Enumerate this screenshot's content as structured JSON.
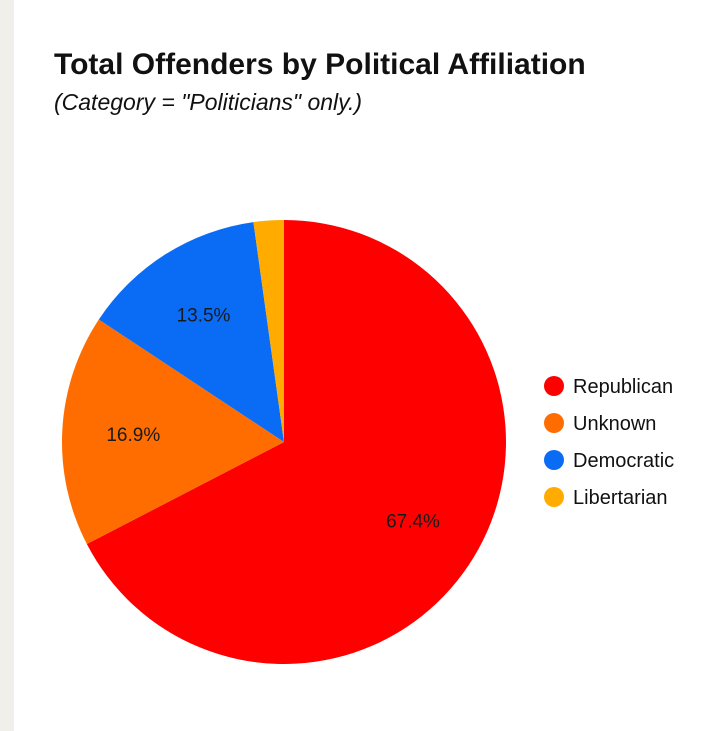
{
  "chart_data": {
    "type": "pie",
    "title": "Total Offenders by Political Affiliation",
    "subtitle": "(Category = \"Politicians\" only.)",
    "slices": [
      {
        "label": "Republican",
        "value": 67.4,
        "value_label": "67.4%",
        "color": "#ff0000"
      },
      {
        "label": "Unknown",
        "value": 16.9,
        "value_label": "16.9%",
        "color": "#ff6d01"
      },
      {
        "label": "Democratic",
        "value": 13.5,
        "value_label": "13.5%",
        "color": "#0a6cf5"
      },
      {
        "label": "Libertarian",
        "value": 2.2,
        "value_label": "",
        "color": "#ffab00"
      }
    ],
    "start_angle": "top",
    "direction": "clockwise",
    "legend_position": "right"
  }
}
